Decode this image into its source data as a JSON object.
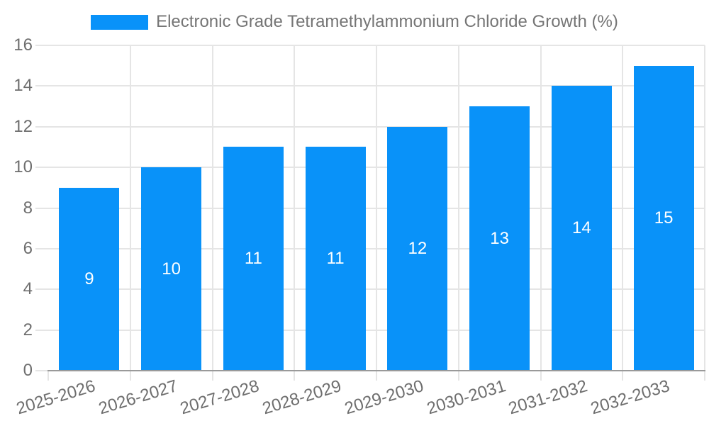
{
  "chart_data": {
    "type": "bar",
    "legend_label": "Electronic Grade Tetramethylammonium Chloride Growth (%)",
    "categories": [
      "2025-2026",
      "2026-2027",
      "2027-2028",
      "2028-2029",
      "2029-2030",
      "2030-2031",
      "2031-2032",
      "2032-2033"
    ],
    "values": [
      9,
      10,
      11,
      11,
      12,
      13,
      14,
      15
    ],
    "title": "",
    "xlabel": "",
    "ylabel": "",
    "ylim": [
      0,
      16
    ],
    "yticks": [
      0,
      2,
      4,
      6,
      8,
      10,
      12,
      14,
      16
    ],
    "grid": true,
    "legend_position": "top-center",
    "value_labels_shown_inside_bars": true,
    "xtick_rotation_deg": -17
  },
  "colors": {
    "bar": "#0992f9",
    "grid": "#e5e5e5",
    "axis": "#9a9a9a",
    "tick_label": "#6e6e6e",
    "legend_text": "#757575",
    "value_label": "#ffffff",
    "background": "#ffffff"
  }
}
